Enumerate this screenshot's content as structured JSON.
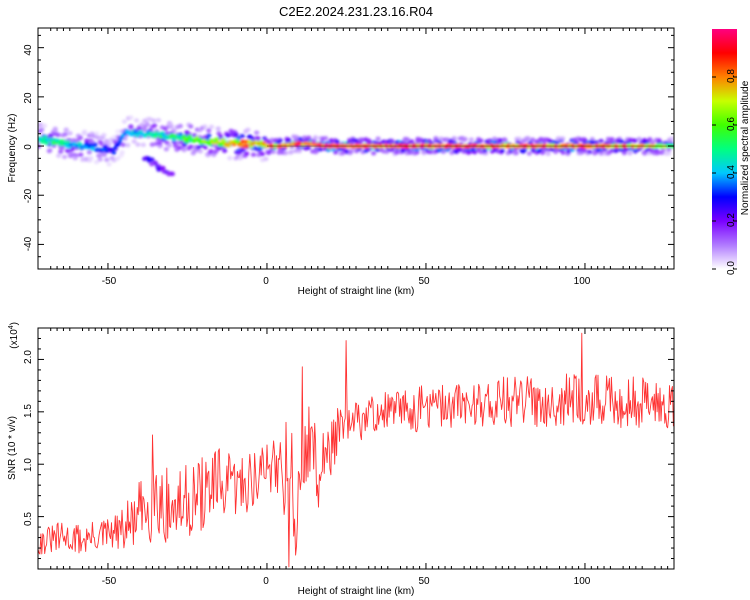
{
  "title": "C2E2.2024.231.23.16.R04",
  "colorbar": {
    "label": "Normalized spectral amplitude",
    "ticks": [
      "0.0",
      "0.2",
      "0.4",
      "0.6",
      "0.8"
    ],
    "tick_values": [
      0.0,
      0.2,
      0.4,
      0.6,
      0.8
    ],
    "range": [
      0,
      1
    ],
    "colors": [
      "#ffffff",
      "#b07aff",
      "#7a00ff",
      "#0000ff",
      "#00c8ff",
      "#00ff80",
      "#40ff00",
      "#c8ff00",
      "#ff8000",
      "#ff0000",
      "#ff0080"
    ]
  },
  "panels": {
    "top": {
      "xlabel": "Height of straight line (km)",
      "ylabel": "Frequency (Hz)",
      "xticks": [
        "-50",
        "0",
        "50",
        "100"
      ],
      "yticks": [
        "-40",
        "-20",
        "0",
        "20",
        "40"
      ]
    },
    "bottom": {
      "xlabel": "Height of straight line (km)",
      "ylabel": "SNR (10 * v/v)",
      "scale_note": "(x10",
      "scale_exp": "4",
      "scale_close": ")",
      "xticks": [
        "-50",
        "0",
        "50",
        "100"
      ],
      "yticks": [
        "0.5",
        "1.0",
        "1.5",
        "2.0"
      ]
    }
  },
  "chart_data": [
    {
      "type": "heatmap",
      "title": "C2E2.2024.231.23.16.R04",
      "xlabel": "Height of straight line (km)",
      "ylabel": "Frequency (Hz)",
      "xlim": [
        -72,
        128
      ],
      "ylim": [
        -50,
        48
      ],
      "x_ticks": [
        -50,
        0,
        50,
        100
      ],
      "y_ticks": [
        -40,
        -20,
        0,
        20,
        40
      ],
      "value_range": [
        0,
        1
      ],
      "ridge": {
        "x": [
          -72,
          -68,
          -64,
          -60,
          -56,
          -52,
          -48,
          -44,
          -40,
          -36,
          -32,
          -28,
          -24,
          -20,
          -16,
          -12,
          -8,
          -4,
          0,
          5,
          10,
          20,
          30,
          40,
          50,
          60,
          70,
          80,
          90,
          100,
          110,
          120,
          128
        ],
        "freq": [
          3,
          2,
          1,
          0,
          0,
          -1,
          -2,
          6,
          5,
          5,
          4,
          3,
          3,
          2,
          2,
          1,
          1,
          1,
          0,
          0,
          1,
          0,
          0,
          0,
          0,
          0,
          0,
          0,
          0,
          0,
          0,
          0,
          0
        ],
        "amplitude": [
          0.5,
          0.55,
          0.5,
          0.45,
          0.4,
          0.35,
          0.3,
          0.4,
          0.45,
          0.5,
          0.5,
          0.55,
          0.6,
          0.65,
          0.7,
          0.75,
          0.8,
          0.8,
          0.85,
          0.85,
          0.9,
          0.95,
          0.95,
          0.95,
          0.95,
          0.95,
          0.9,
          0.9,
          0.9,
          0.9,
          0.85,
          0.8,
          0.6
        ]
      },
      "secondary_features": [
        {
          "x": [
            -38,
            -30
          ],
          "freq": [
            -5,
            -12
          ],
          "amplitude": 0.3
        }
      ]
    },
    {
      "type": "line",
      "xlabel": "Height of straight line (km)",
      "ylabel": "SNR (10 * v/v)",
      "y_multiplier": "x10^4",
      "xlim": [
        -72,
        128
      ],
      "ylim": [
        0,
        2.3
      ],
      "x_ticks": [
        -50,
        0,
        50,
        100
      ],
      "y_ticks": [
        0.5,
        1.0,
        1.5,
        2.0
      ],
      "color": "#ff3333",
      "series": [
        {
          "x": [
            -72,
            -65,
            -58,
            -52,
            -46,
            -40,
            -35,
            -30,
            -25,
            -20,
            -15,
            -10,
            -5,
            0,
            3,
            5,
            7,
            9,
            11,
            13,
            16,
            19,
            22,
            25,
            28,
            35,
            45,
            55,
            65,
            75,
            85,
            95,
            105,
            115,
            125,
            128
          ],
          "y": [
            0.25,
            0.3,
            0.28,
            0.32,
            0.35,
            0.5,
            0.7,
            0.55,
            0.65,
            0.72,
            0.8,
            0.78,
            0.85,
            0.95,
            1.1,
            0.9,
            1.2,
            0.4,
            0.8,
            1.3,
            0.9,
            1.1,
            1.3,
            1.35,
            1.4,
            1.5,
            1.52,
            1.55,
            1.58,
            1.6,
            1.6,
            1.62,
            1.6,
            1.6,
            1.58,
            1.6
          ],
          "noise_amplitude": [
            0.12,
            0.15,
            0.15,
            0.15,
            0.2,
            0.35,
            0.45,
            0.35,
            0.35,
            0.35,
            0.35,
            0.3,
            0.3,
            0.3,
            0.4,
            0.5,
            0.5,
            0.4,
            0.4,
            0.4,
            0.35,
            0.3,
            0.25,
            0.2,
            0.2,
            0.2,
            0.22,
            0.22,
            0.22,
            0.25,
            0.25,
            0.25,
            0.25,
            0.25,
            0.25,
            0.25
          ],
          "peaks": [
            {
              "x": -36,
              "y": 1.28
            },
            {
              "x": 11,
              "y": 1.93
            },
            {
              "x": 25,
              "y": 2.18
            },
            {
              "x": 99,
              "y": 2.25
            }
          ],
          "troughs": [
            {
              "x": 7,
              "y": 0.02
            }
          ]
        }
      ]
    }
  ]
}
